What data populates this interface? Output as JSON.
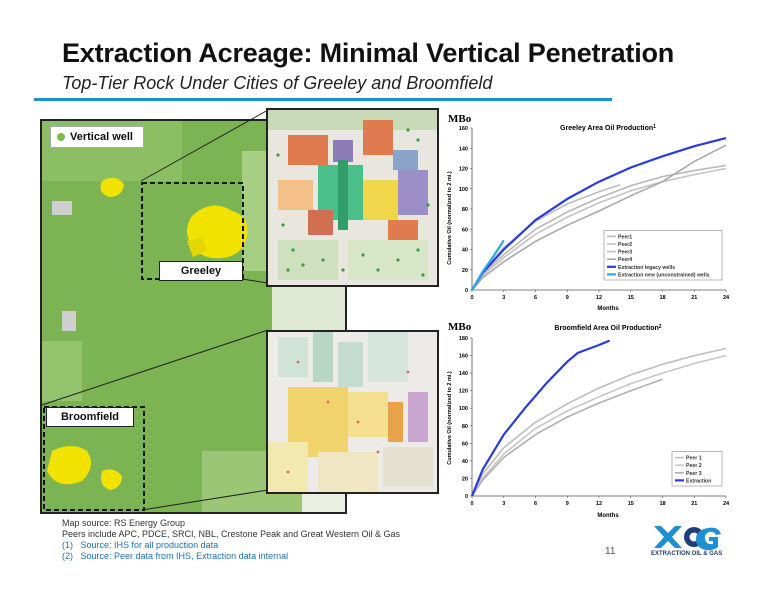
{
  "title": "Extraction Acreage: Minimal Vertical Penetration",
  "subtitle": "Top-Tier Rock Under Cities of Greeley and Broomfield",
  "map": {
    "legend_label": "Vertical well",
    "greeley_label": "Greeley",
    "broomfield_label": "Broomfield"
  },
  "notes": {
    "line1": "Map source: RS Energy Group",
    "line2": "Peers include APC, PDCE, SRCI, NBL, Crestone Peak and Great Western Oil & Gas",
    "line3_num": "(1)",
    "line3_text": "Source: IHS for all production data",
    "line4_num": "(2)",
    "line4_text": "Source: Peer data from IHS, Extraction data internal"
  },
  "page_number": "11",
  "logo_text": "EXTRACTION OIL & GAS",
  "colors": {
    "accent": "#1e8fd0",
    "map_green": "#79b04f",
    "urban_yellow": "#f2e200",
    "extraction_line": "#2a3bdc",
    "peer_line": "#b7b7b7",
    "new_well_line": "#29a9e8"
  },
  "chart_data": [
    {
      "type": "line",
      "unit_label": "MBo",
      "title": "Greeley Area Oil Production",
      "title_sup": "1",
      "xlabel": "Months",
      "ylabel": "Cumulative Oil (normalized to 2 mi.)",
      "xlim": [
        0,
        24
      ],
      "ylim": [
        0,
        160
      ],
      "x_ticks": [
        "0",
        "3",
        "6",
        "9",
        "12",
        "15",
        "18",
        "21",
        "24"
      ],
      "y_ticks": [
        "0",
        "20",
        "40",
        "60",
        "80",
        "100",
        "120",
        "140",
        "160"
      ],
      "legend_position": "bottom-right",
      "series": [
        {
          "name": "Peer1",
          "color": "#b7b7b7",
          "width": 1.6,
          "points": [
            [
              0,
              0
            ],
            [
              1,
              16
            ],
            [
              3,
              35
            ],
            [
              6,
              60
            ],
            [
              9,
              77
            ],
            [
              12,
              91
            ],
            [
              15,
              103
            ],
            [
              18,
              112
            ],
            [
              21,
              118
            ],
            [
              24,
              123
            ]
          ]
        },
        {
          "name": "Peer2",
          "color": "#c3c3c3",
          "width": 1.6,
          "points": [
            [
              0,
              0
            ],
            [
              1,
              14
            ],
            [
              3,
              32
            ],
            [
              6,
              55
            ],
            [
              9,
              72
            ],
            [
              12,
              86
            ],
            [
              15,
              98
            ],
            [
              18,
              107
            ],
            [
              21,
              114
            ],
            [
              24,
              120
            ]
          ]
        },
        {
          "name": "Peer3",
          "color": "#bdbdbd",
          "width": 1.6,
          "points": [
            [
              0,
              0
            ],
            [
              1,
              18
            ],
            [
              3,
              42
            ],
            [
              6,
              68
            ],
            [
              9,
              85
            ],
            [
              12,
              97
            ],
            [
              14,
              104
            ]
          ]
        },
        {
          "name": "Peer4",
          "color": "#a9a9a9",
          "width": 1.6,
          "points": [
            [
              0,
              0
            ],
            [
              1,
              12
            ],
            [
              3,
              28
            ],
            [
              6,
              48
            ],
            [
              9,
              64
            ],
            [
              12,
              78
            ],
            [
              15,
              93
            ],
            [
              18,
              107
            ],
            [
              21,
              127
            ],
            [
              24,
              143
            ]
          ]
        },
        {
          "name": "Extraction legacy wells",
          "color": "#2a3bdc",
          "width": 2.2,
          "points": [
            [
              0,
              0
            ],
            [
              1,
              17
            ],
            [
              3,
              40
            ],
            [
              6,
              69
            ],
            [
              9,
              90
            ],
            [
              12,
              107
            ],
            [
              15,
              121
            ],
            [
              18,
              132
            ],
            [
              21,
              142
            ],
            [
              24,
              150
            ]
          ]
        },
        {
          "name": "Extraction new (unconstrained) wells",
          "color": "#29a9e8",
          "width": 2.2,
          "points": [
            [
              0,
              0
            ],
            [
              1,
              18
            ],
            [
              2,
              33
            ],
            [
              3,
              49
            ]
          ]
        }
      ]
    },
    {
      "type": "line",
      "unit_label": "MBo",
      "title": "Broomfield Area Oil Production",
      "title_sup": "2",
      "xlabel": "Months",
      "ylabel": "Cumulative Oil (normalized to 2 mi.)",
      "xlim": [
        0,
        24
      ],
      "ylim": [
        0,
        180
      ],
      "x_ticks": [
        "0",
        "3",
        "6",
        "9",
        "12",
        "15",
        "18",
        "21",
        "24"
      ],
      "y_ticks": [
        "0",
        "20",
        "40",
        "60",
        "80",
        "100",
        "120",
        "140",
        "160",
        "180"
      ],
      "legend_position": "bottom-right",
      "series": [
        {
          "name": "Peer 1",
          "color": "#bdbdbd",
          "width": 1.6,
          "points": [
            [
              0,
              0
            ],
            [
              1,
              25
            ],
            [
              3,
              55
            ],
            [
              6,
              84
            ],
            [
              9,
              105
            ],
            [
              12,
              123
            ],
            [
              15,
              138
            ],
            [
              18,
              150
            ],
            [
              21,
              160
            ],
            [
              24,
              168
            ]
          ]
        },
        {
          "name": "Peer 2",
          "color": "#c6c6c6",
          "width": 1.6,
          "points": [
            [
              0,
              0
            ],
            [
              1,
              20
            ],
            [
              3,
              48
            ],
            [
              6,
              77
            ],
            [
              9,
              97
            ],
            [
              12,
              113
            ],
            [
              15,
              128
            ],
            [
              18,
              140
            ],
            [
              21,
              151
            ],
            [
              24,
              160
            ]
          ]
        },
        {
          "name": "Peer 3",
          "color": "#b0b0b0",
          "width": 1.6,
          "points": [
            [
              0,
              0
            ],
            [
              1,
              18
            ],
            [
              3,
              44
            ],
            [
              6,
              70
            ],
            [
              9,
              90
            ],
            [
              12,
              106
            ],
            [
              15,
              120
            ],
            [
              18,
              133
            ]
          ]
        },
        {
          "name": "Extraction",
          "color": "#2a3bdc",
          "width": 2.2,
          "points": [
            [
              0,
              0
            ],
            [
              1,
              30
            ],
            [
              3,
              70
            ],
            [
              5,
              100
            ],
            [
              7,
              128
            ],
            [
              9,
              153
            ],
            [
              10,
              163
            ],
            [
              12,
              172
            ],
            [
              13,
              177
            ]
          ]
        }
      ]
    }
  ]
}
